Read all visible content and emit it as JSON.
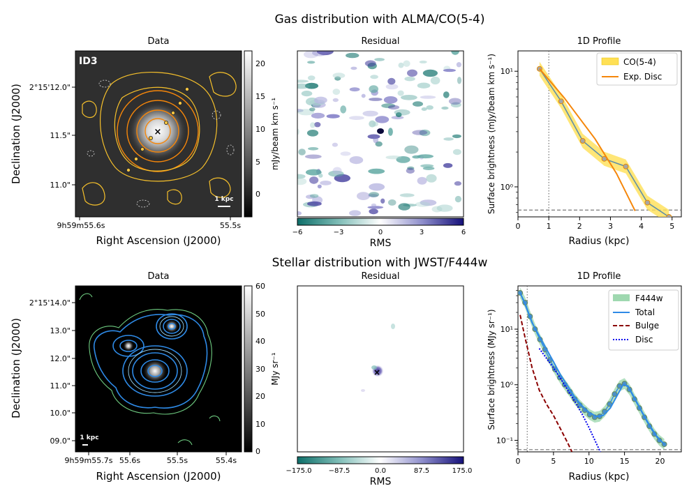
{
  "figure": {
    "row1_title": "Gas distribution with ALMA/CO(5-4)",
    "row2_title": "Stellar distribution with JWST/F444w"
  },
  "chart_data": [
    {
      "type": "heatmap",
      "name": "gas-data",
      "title": "Data",
      "source_label": "ID3",
      "scalebar_label": "1 kpc",
      "xlabel": "Right Ascension (J2000)",
      "ylabel": "Declination (J2000)",
      "xticks": [
        {
          "text": "9h59m55.6s",
          "pos": 0
        },
        {
          "text": "55.5s",
          "pos": 1
        }
      ],
      "yticks": [
        "2°15'12.0\"",
        "11.5\"",
        "11.0\""
      ],
      "colorbar": {
        "label": "mJy/beam km s⁻¹",
        "ticks": [
          "20",
          "15",
          "10",
          "5",
          "0"
        ],
        "range": [
          -3,
          22
        ]
      }
    },
    {
      "type": "heatmap",
      "name": "gas-residual",
      "title": "Residual",
      "colorbar": {
        "label": "RMS",
        "ticks": [
          "−6",
          "−3",
          "0",
          "3",
          "6"
        ],
        "range": [
          -6,
          6
        ]
      }
    },
    {
      "type": "line",
      "name": "gas-profile",
      "title": "1D Profile",
      "xlabel": "Radius (kpc)",
      "ylabel": "Surface brightness (mJy/beam km s⁻¹)",
      "xlim": [
        0,
        5.3
      ],
      "ylim": [
        0.55,
        15
      ],
      "yscale": "log",
      "xticks": [
        "0",
        "1",
        "2",
        "3",
        "4",
        "5"
      ],
      "yticks": [
        {
          "value": 10,
          "text": "10¹"
        },
        {
          "value": 1,
          "text": "10⁰"
        }
      ],
      "series": [
        {
          "name": "CO(5-4)",
          "x": [
            0.7,
            1.4,
            2.1,
            2.8,
            3.5,
            4.2,
            4.9
          ],
          "y": [
            10.5,
            5.5,
            2.5,
            1.75,
            1.5,
            0.73,
            0.55
          ]
        },
        {
          "name": "Exp. Disc",
          "x": [
            0.7,
            1.5,
            2.5,
            3.2,
            3.8
          ],
          "y": [
            10.5,
            5.9,
            2.6,
            1.3,
            0.62
          ]
        }
      ],
      "vline": 1.0,
      "hline": 0.63
    },
    {
      "type": "heatmap",
      "name": "stellar-data",
      "title": "Data",
      "scalebar_label": "1 kpc",
      "xlabel": "Right Ascension (J2000)",
      "ylabel": "Declination (J2000)",
      "xticks": [
        "9h59m55.7s",
        "55.6s",
        "55.5s",
        "55.4s"
      ],
      "yticks": [
        "2°15'14.0\"",
        "13.0\"",
        "12.0\"",
        "11.0\"",
        "10.0\"",
        "09.0\""
      ],
      "colorbar": {
        "label": "MJy sr⁻¹",
        "ticks": [
          "60",
          "50",
          "40",
          "30",
          "20",
          "10",
          "0"
        ],
        "range": [
          0,
          60
        ]
      }
    },
    {
      "type": "heatmap",
      "name": "stellar-residual",
      "title": "Residual",
      "colorbar": {
        "label": "RMS",
        "ticks": [
          "−175.0",
          "−87.5",
          "0.0",
          "87.5",
          "175.0"
        ],
        "range": [
          -175,
          175
        ]
      }
    },
    {
      "type": "line",
      "name": "stellar-profile",
      "title": "1D Profile",
      "xlabel": "Radius (kpc)",
      "ylabel": "Surface brightness (MJy sr⁻¹)",
      "xlim": [
        0,
        23
      ],
      "ylim": [
        0.062,
        60
      ],
      "yscale": "log",
      "xticks": [
        "0",
        "5",
        "10",
        "15",
        "20"
      ],
      "yticks": [
        {
          "value": 10,
          "text": "10¹"
        },
        {
          "value": 1,
          "text": "10⁰"
        },
        {
          "value": 0.1,
          "text": "10⁻¹"
        }
      ],
      "series": [
        {
          "name": "F444w",
          "x": [
            0.3,
            1.0,
            1.7,
            2.4,
            3.1,
            3.8,
            4.5,
            5.2,
            5.9,
            6.6,
            7.3,
            8.0,
            8.7,
            9.4,
            10.1,
            10.8,
            11.5,
            12.2,
            12.9,
            13.6,
            14.3,
            15.0,
            15.7,
            16.4,
            17.1,
            17.8,
            18.5,
            19.2,
            19.9,
            20.6
          ],
          "y": [
            45,
            30,
            17,
            10,
            6.5,
            4.3,
            2.8,
            1.9,
            1.35,
            1.0,
            0.75,
            0.55,
            0.43,
            0.35,
            0.29,
            0.26,
            0.27,
            0.33,
            0.45,
            0.68,
            0.95,
            1.05,
            0.82,
            0.55,
            0.38,
            0.26,
            0.18,
            0.13,
            0.1,
            0.085
          ]
        },
        {
          "name": "Total",
          "x": [
            0.3,
            1.0,
            2.0,
            3.0,
            4.0,
            5.0,
            6.0,
            7.0,
            8.0,
            9.0,
            10.0,
            11.0,
            12.0,
            13.0,
            14.0,
            14.8,
            15.5,
            16.5,
            17.5,
            18.5,
            19.5,
            20.6
          ],
          "y": [
            45,
            28,
            13,
            7.5,
            4.4,
            2.6,
            1.5,
            0.95,
            0.6,
            0.42,
            0.32,
            0.27,
            0.28,
            0.38,
            0.65,
            1.0,
            0.95,
            0.55,
            0.32,
            0.19,
            0.12,
            0.085
          ]
        },
        {
          "name": "Bulge",
          "x": [
            0.3,
            1.0,
            2.0,
            3.0,
            4.0,
            5.0,
            6.0,
            7.0,
            7.6
          ],
          "y": [
            18,
            7,
            2.0,
            0.8,
            0.45,
            0.28,
            0.16,
            0.09,
            0.062
          ]
        },
        {
          "name": "Disc",
          "x": [
            3.0,
            4.0,
            5.0,
            6.0,
            7.0,
            8.0,
            9.0,
            10.0,
            11.0,
            11.6
          ],
          "y": [
            4.5,
            3.0,
            2.0,
            1.3,
            0.8,
            0.5,
            0.3,
            0.17,
            0.09,
            0.062
          ]
        }
      ],
      "vline": 1.3,
      "hline": 0.068
    }
  ]
}
